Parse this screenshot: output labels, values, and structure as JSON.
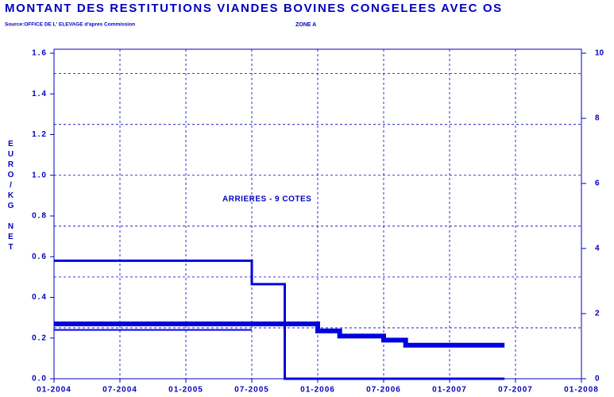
{
  "chart_data": {
    "type": "step",
    "title": "MONTANT DES RESTITUTIONS VIANDES BOVINES CONGELEES AVEC OS",
    "source": "Source:OFFICE DE L' ELEVAGE d'apres Commission",
    "subtitle": "ZONE A",
    "ylabel": "EURO/KG NET",
    "annotation": "ARRIERES - 9 COTES",
    "xlim": [
      "01-2004",
      "01-2008"
    ],
    "xticks": [
      "01-2004",
      "07-2004",
      "01-2005",
      "07-2005",
      "01-2006",
      "07-2006",
      "01-2007",
      "07-2007",
      "01-2008"
    ],
    "ylim": [
      0,
      1.6
    ],
    "yticks": [
      {
        "value": 0,
        "label": "0.0"
      },
      0.2,
      0.4,
      0.6,
      0.8,
      {
        "value": 1,
        "label": "1.0"
      },
      1.2,
      1.4,
      1.6
    ],
    "y2lim": [
      0,
      10
    ],
    "y2ticks": [
      0,
      2,
      4,
      6,
      8,
      10
    ],
    "ygrid": [
      0.25,
      0.5,
      0.75,
      1,
      1.25,
      1.5
    ],
    "grid": true,
    "series": [
      {
        "color": "#0000e0",
        "width": 3,
        "x": [
          "01-2004",
          "07-2005",
          "10-2005",
          "06-2007"
        ],
        "values": [
          0.58,
          0.465,
          0,
          0
        ]
      },
      {
        "color": "#0000e0",
        "width": 6,
        "x": [
          "01-2004",
          "01-2006",
          "03-2006",
          "07-2006",
          "09-2006",
          "06-2007"
        ],
        "values": [
          0.27,
          0.235,
          0.21,
          0.19,
          0.165,
          0.165
        ]
      },
      {
        "color": "#0000e0",
        "width": 2,
        "x": [
          "01-2004",
          "07-2005"
        ],
        "values": [
          0.24,
          0.24
        ]
      }
    ]
  }
}
